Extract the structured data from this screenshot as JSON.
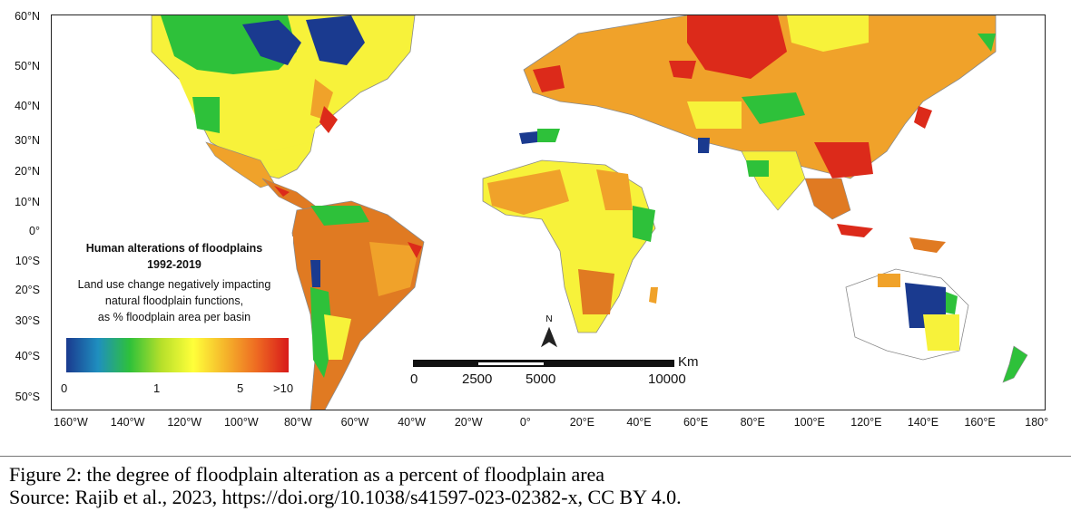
{
  "map": {
    "title_lines": [
      "Human alterations of floodplains",
      "1992-2019"
    ],
    "description_lines": [
      "Land use change negatively impacting",
      "natural floodplain functions,",
      "as % floodplain area per basin"
    ],
    "legend": {
      "ticks": [
        "0",
        "1",
        "5",
        ">10"
      ],
      "gradient": [
        "#1a3a8f",
        "#1f8fbf",
        "#2ec13a",
        "#b7e02a",
        "#ffff3a",
        "#f5b52b",
        "#ee6a22",
        "#d81a1a"
      ]
    },
    "lat_labels": [
      "60°N",
      "50°N",
      "40°N",
      "30°N",
      "20°N",
      "10°N",
      "0°",
      "10°S",
      "20°S",
      "30°S",
      "40°S",
      "50°S"
    ],
    "lon_labels": [
      "160°W",
      "140°W",
      "120°W",
      "100°W",
      "80°W",
      "60°W",
      "40°W",
      "20°W",
      "0°",
      "20°E",
      "40°E",
      "60°E",
      "80°E",
      "100°E",
      "120°E",
      "140°E",
      "160°E",
      "180°"
    ],
    "scale_bar": {
      "ticks": [
        "0",
        "2500",
        "5000",
        "10000"
      ],
      "unit": "Km"
    },
    "north_label": "N",
    "colors": {
      "dark_blue": "#1a3a8f",
      "green": "#2ec13a",
      "yellow": "#f7f23a",
      "orange": "#f0a22a",
      "dark_orange": "#e07a22",
      "red": "#dc2a1a",
      "land_outline": "#8a8a8a"
    }
  },
  "caption": {
    "line1": "Figure 2:  the degree of floodplain alteration as a percent of floodplain area",
    "line2": "Source:  Rajib et al., 2023,  https://doi.org/10.1038/s41597-023-02382-x, CC BY 4.0."
  }
}
